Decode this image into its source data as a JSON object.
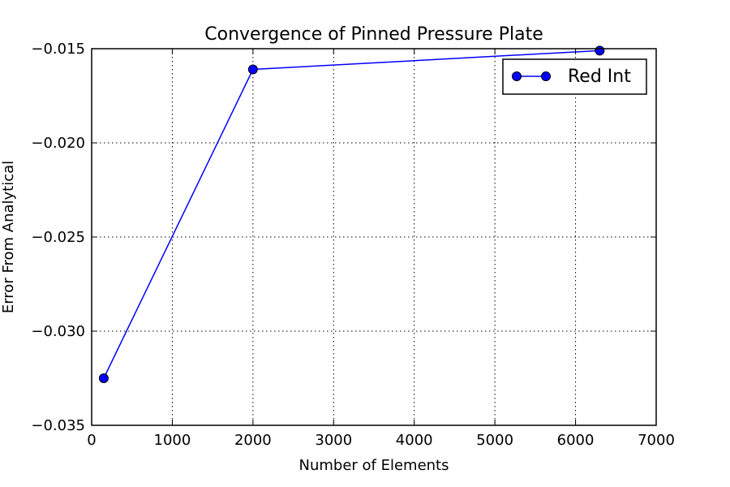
{
  "chart_data": {
    "type": "line",
    "title": "Convergence of Pinned Pressure Plate",
    "xlabel": "Number of Elements",
    "ylabel": "Error From Analytical",
    "xlim": [
      0,
      7000
    ],
    "ylim": [
      -0.035,
      -0.015
    ],
    "xticks": [
      0,
      1000,
      2000,
      3000,
      4000,
      5000,
      6000,
      7000
    ],
    "xtick_labels": [
      "0",
      "1000",
      "2000",
      "3000",
      "4000",
      "5000",
      "6000",
      "7000"
    ],
    "yticks": [
      -0.035,
      -0.03,
      -0.025,
      -0.02,
      -0.015
    ],
    "ytick_labels": [
      "−0.035",
      "−0.030",
      "−0.025",
      "−0.020",
      "−0.015"
    ],
    "grid": true,
    "legend_position": "top-right",
    "series": [
      {
        "name": "Red Int",
        "color": "#0000ff",
        "marker": "circle",
        "x": [
          150,
          2000,
          6300
        ],
        "y": [
          -0.0325,
          -0.0161,
          -0.0151
        ]
      }
    ]
  }
}
